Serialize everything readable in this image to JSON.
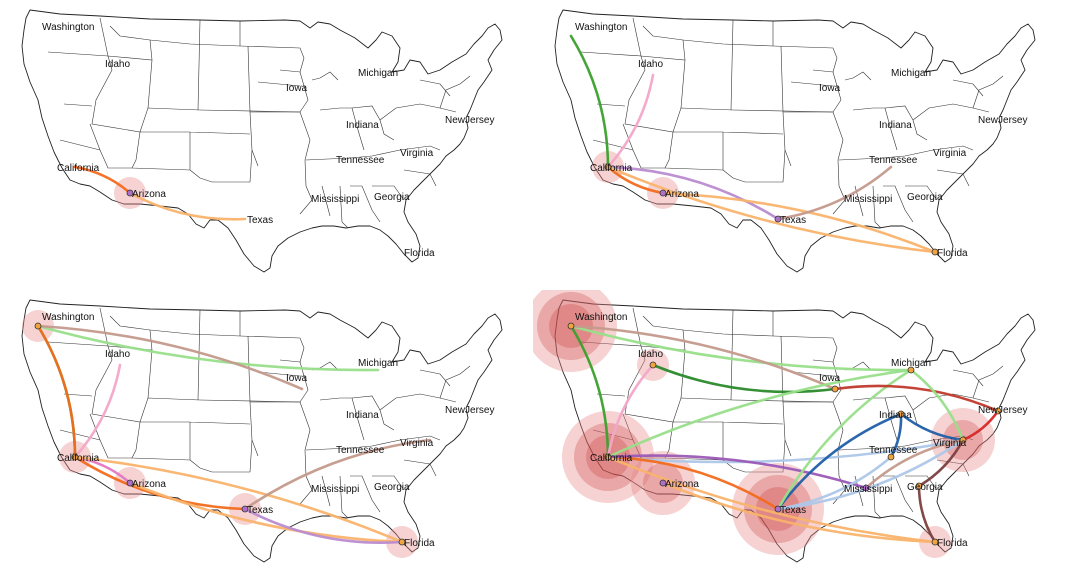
{
  "panels": [
    {
      "labels": [
        "Washington",
        "Idaho",
        "Michigan",
        "Iowa",
        "NewJersey",
        "Indiana",
        "California",
        "Virginia",
        "Tennessee",
        "Arizona",
        "Mississippi",
        "Georgia",
        "Texas",
        "Florida"
      ],
      "active": [
        "Arizona"
      ],
      "bubbles": [
        {
          "state": "Arizona",
          "level": 1
        }
      ],
      "routes": [
        {
          "from": "California",
          "to": "Arizona",
          "color": "#f26b1d"
        },
        {
          "from": "Arizona",
          "to": "Texas",
          "color": "#f9b36b"
        }
      ]
    },
    {
      "labels": [
        "Washington",
        "Idaho",
        "Michigan",
        "Iowa",
        "NewJersey",
        "Indiana",
        "California",
        "Virginia",
        "Tennessee",
        "Arizona",
        "Mississippi",
        "Georgia",
        "Texas",
        "Florida"
      ],
      "active": [
        "California",
        "Arizona",
        "Texas",
        "Florida"
      ],
      "bubbles": [
        {
          "state": "California",
          "level": 1
        },
        {
          "state": "Arizona",
          "level": 1
        }
      ],
      "routes": [
        {
          "from": "Washington",
          "to": "California",
          "color": "#3aa02c"
        },
        {
          "from": "California",
          "to": "Arizona",
          "color": "#f26b1d"
        },
        {
          "from": "California",
          "to": "Texas",
          "color": "#b98bd0"
        },
        {
          "from": "California",
          "to": "Florida",
          "color": "#f9b36b"
        },
        {
          "from": "Arizona",
          "to": "Florida",
          "color": "#f9b36b"
        },
        {
          "from": "Texas",
          "to": "Tennessee",
          "color": "#c49a8c"
        },
        {
          "from": "Idaho",
          "to": "California",
          "color": "#f3a6c8"
        }
      ]
    },
    {
      "labels": [
        "Washington",
        "Idaho",
        "Michigan",
        "Iowa",
        "NewJersey",
        "Indiana",
        "California",
        "Virginia",
        "Tennessee",
        "Arizona",
        "Mississippi",
        "Georgia",
        "Texas",
        "Florida"
      ],
      "active": [
        "Washington",
        "California",
        "Arizona",
        "Texas",
        "Florida"
      ],
      "bubbles": [
        {
          "state": "Washington",
          "level": 1
        },
        {
          "state": "California",
          "level": 1
        },
        {
          "state": "Arizona",
          "level": 1
        },
        {
          "state": "Texas",
          "level": 1
        },
        {
          "state": "Florida",
          "level": 1
        }
      ],
      "routes": [
        {
          "from": "Washington",
          "to": "California",
          "color": "#3aa02c"
        },
        {
          "from": "Washington",
          "to": "Michigan",
          "color": "#98df8a"
        },
        {
          "from": "Washington",
          "to": "Iowa",
          "color": "#c49a8c"
        },
        {
          "from": "California",
          "to": "Washington",
          "color": "#f26b1d"
        },
        {
          "from": "California",
          "to": "Arizona",
          "color": "#e377c2"
        },
        {
          "from": "California",
          "to": "Texas",
          "color": "#f26b1d"
        },
        {
          "from": "California",
          "to": "Florida",
          "color": "#f9b36b"
        },
        {
          "from": "Arizona",
          "to": "Florida",
          "color": "#f9b36b"
        },
        {
          "from": "Texas",
          "to": "Virginia",
          "color": "#c49a8c"
        },
        {
          "from": "Texas",
          "to": "Florida",
          "color": "#b98bd0"
        },
        {
          "from": "Idaho",
          "to": "California",
          "color": "#f3a6c8"
        }
      ]
    },
    {
      "labels": [
        "Washington",
        "Idaho",
        "Michigan",
        "Iowa",
        "NewJersey",
        "Indiana",
        "California",
        "Virginia",
        "Tennessee",
        "Arizona",
        "Mississippi",
        "Georgia",
        "Texas",
        "Florida"
      ],
      "active": [
        "Washington",
        "Idaho",
        "Michigan",
        "Iowa",
        "NewJersey",
        "Indiana",
        "California",
        "Virginia",
        "Tennessee",
        "Arizona",
        "Mississippi",
        "Georgia",
        "Texas",
        "Florida"
      ],
      "bubbles": [
        {
          "state": "Washington",
          "level": 3
        },
        {
          "state": "Idaho",
          "level": 1
        },
        {
          "state": "California",
          "level": 3
        },
        {
          "state": "Arizona",
          "level": 2
        },
        {
          "state": "Texas",
          "level": 3
        },
        {
          "state": "Virginia",
          "level": 2
        },
        {
          "state": "Florida",
          "level": 1
        }
      ],
      "routes": [
        {
          "from": "Washington",
          "to": "California",
          "color": "#3aa02c"
        },
        {
          "from": "Washington",
          "to": "Michigan",
          "color": "#98df8a"
        },
        {
          "from": "Washington",
          "to": "Iowa",
          "color": "#c49a8c"
        },
        {
          "from": "Idaho",
          "to": "Iowa",
          "color": "#2a8a2a"
        },
        {
          "from": "California",
          "to": "Michigan",
          "color": "#98df8a"
        },
        {
          "from": "California",
          "to": "Virginia",
          "color": "#aec7e8"
        },
        {
          "from": "California",
          "to": "Texas",
          "color": "#f26b1d"
        },
        {
          "from": "California",
          "to": "Florida",
          "color": "#f9b36b"
        },
        {
          "from": "California",
          "to": "Mississippi",
          "color": "#9b59b6"
        },
        {
          "from": "Arizona",
          "to": "Florida",
          "color": "#f9b36b"
        },
        {
          "from": "Texas",
          "to": "Indiana",
          "color": "#1f5fa8"
        },
        {
          "from": "Texas",
          "to": "Tennessee",
          "color": "#aec7e8"
        },
        {
          "from": "Texas",
          "to": "Michigan",
          "color": "#98df8a"
        },
        {
          "from": "Texas",
          "to": "Virginia",
          "color": "#aec7e8"
        },
        {
          "from": "Iowa",
          "to": "NewJersey",
          "color": "#c0392b"
        },
        {
          "from": "Indiana",
          "to": "Virginia",
          "color": "#1f5fa8"
        },
        {
          "from": "Indiana",
          "to": "Tennessee",
          "color": "#1f5fa8"
        },
        {
          "from": "Virginia",
          "to": "NewJersey",
          "color": "#d62728"
        },
        {
          "from": "Virginia",
          "to": "Georgia",
          "color": "#7b3f3f"
        },
        {
          "from": "Georgia",
          "to": "Florida",
          "color": "#7b3f3f"
        },
        {
          "from": "Michigan",
          "to": "Virginia",
          "color": "#98df8a"
        },
        {
          "from": "Idaho",
          "to": "California",
          "color": "#f3a6c8"
        },
        {
          "from": "Mississippi",
          "to": "Virginia",
          "color": "#c49a8c"
        }
      ]
    }
  ],
  "colors": {
    "bubble": "#e8888a",
    "bubble_dark": "#c9393b",
    "node_default": "#f1a340",
    "node_purple": "#b070c8"
  }
}
